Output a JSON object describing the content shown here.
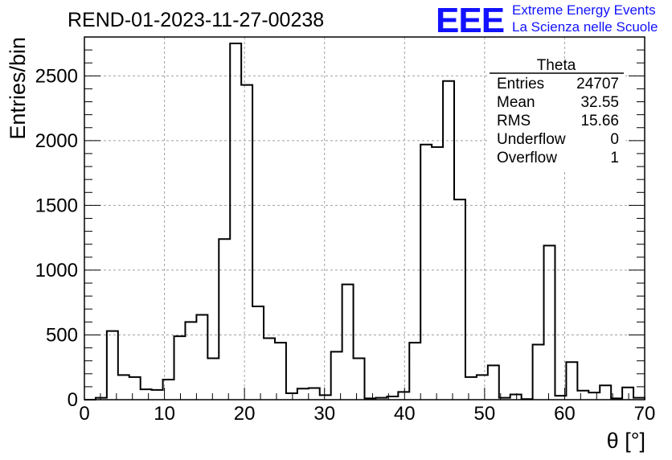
{
  "chart_data": {
    "type": "bar",
    "title": "REND-01-2023-11-27-00238",
    "xlabel": "θ [°]",
    "ylabel": "Entries/bin",
    "xlim": [
      0,
      70
    ],
    "ylim": [
      0,
      2800
    ],
    "bin_width": 1.4,
    "x_ticks": [
      "0",
      "10",
      "20",
      "30",
      "40",
      "50",
      "60",
      "70"
    ],
    "y_ticks": [
      "0",
      "500",
      "1000",
      "1500",
      "2000",
      "2500"
    ],
    "grid": true,
    "values": [
      0,
      15,
      530,
      190,
      175,
      80,
      75,
      155,
      490,
      600,
      655,
      320,
      1240,
      2750,
      2430,
      720,
      475,
      440,
      50,
      85,
      90,
      35,
      370,
      890,
      320,
      10,
      15,
      25,
      60,
      440,
      1970,
      1950,
      2460,
      1545,
      175,
      190,
      265,
      15,
      40,
      5,
      425,
      1190,
      30,
      290,
      70,
      55,
      110,
      10,
      95,
      15
    ],
    "stats_box": {
      "title": "Theta",
      "rows": [
        {
          "label": "Entries",
          "value": "24707"
        },
        {
          "label": "Mean",
          "value": "32.55"
        },
        {
          "label": "RMS",
          "value": "15.66"
        },
        {
          "label": "Underflow",
          "value": "0"
        },
        {
          "label": "Overflow",
          "value": "1"
        }
      ]
    }
  },
  "logo": {
    "mark": "EEE",
    "line1": "Extreme Energy Events",
    "line2": "La Scienza nelle Scuole"
  },
  "colors": {
    "logo": "#1212ff",
    "line": "#000000",
    "grid": "#a0a0a0"
  }
}
